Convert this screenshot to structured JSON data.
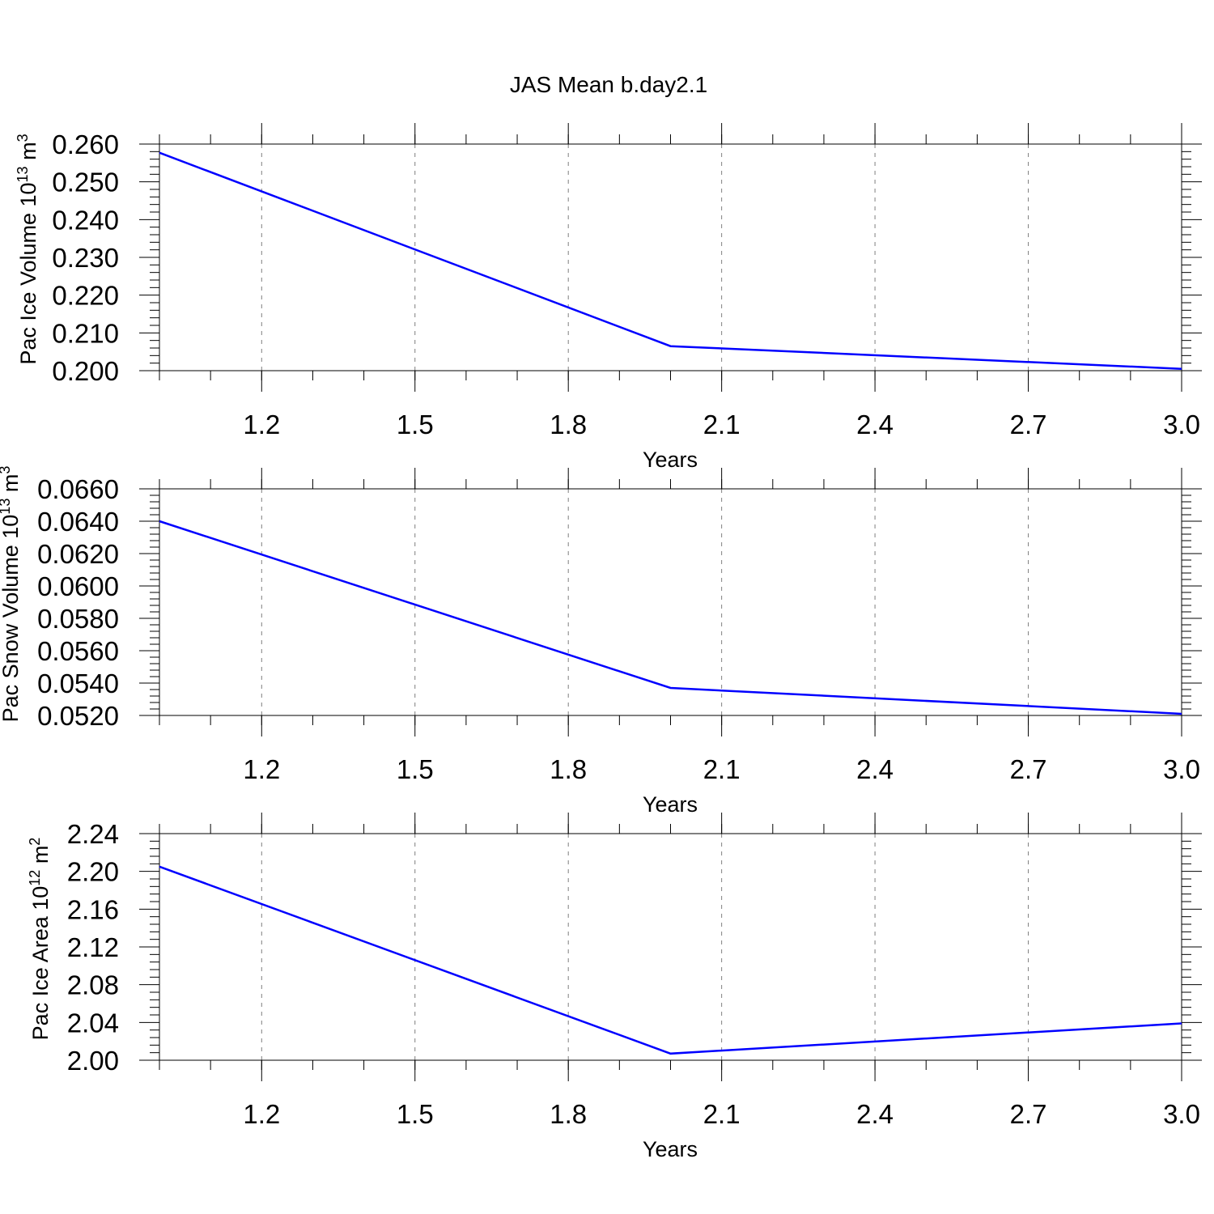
{
  "title": "JAS Mean b.day2.1",
  "colors": {
    "line": "#0000ff",
    "axis": "#000000",
    "grid": "#7f7f7f"
  },
  "chart_data": [
    {
      "type": "line",
      "title": "JAS Mean b.day2.1",
      "xlabel": "Years",
      "ylabel": "Pac Ice Volume 10",
      "ylabel_sup": "13",
      "ylabel_unit": "m",
      "ylabel_unit_sup": "3",
      "x": [
        1.0,
        2.0,
        3.0
      ],
      "series": [
        {
          "name": "Pac Ice Volume",
          "values": [
            0.2577,
            0.2065,
            0.2005
          ]
        }
      ],
      "xlim": [
        1.0,
        3.0
      ],
      "ylim": [
        0.2,
        0.26
      ],
      "xticks": [
        "1.2",
        "1.5",
        "1.8",
        "2.1",
        "2.4",
        "2.7",
        "3.0"
      ],
      "yticks": [
        "0.200",
        "0.210",
        "0.220",
        "0.230",
        "0.240",
        "0.250",
        "0.260"
      ],
      "grid": "x-dashed"
    },
    {
      "type": "line",
      "xlabel": "Years",
      "ylabel": "Pac Snow Volume 10",
      "ylabel_sup": "13",
      "ylabel_unit": "m",
      "ylabel_unit_sup": "3",
      "x": [
        1.0,
        2.0,
        3.0
      ],
      "series": [
        {
          "name": "Pac Snow Volume",
          "values": [
            0.064,
            0.0537,
            0.0521
          ]
        }
      ],
      "xlim": [
        1.0,
        3.0
      ],
      "ylim": [
        0.052,
        0.066
      ],
      "xticks": [
        "1.2",
        "1.5",
        "1.8",
        "2.1",
        "2.4",
        "2.7",
        "3.0"
      ],
      "yticks": [
        "0.0520",
        "0.0540",
        "0.0560",
        "0.0580",
        "0.0600",
        "0.0620",
        "0.0640",
        "0.0660"
      ],
      "grid": "x-dashed"
    },
    {
      "type": "line",
      "xlabel": "Years",
      "ylabel": "Pac Ice Area 10",
      "ylabel_sup": "12",
      "ylabel_unit": "m",
      "ylabel_unit_sup": "2",
      "x": [
        1.0,
        2.0,
        3.0
      ],
      "series": [
        {
          "name": "Pac Ice Area",
          "values": [
            2.205,
            2.007,
            2.039
          ]
        }
      ],
      "xlim": [
        1.0,
        3.0
      ],
      "ylim": [
        2.0,
        2.24
      ],
      "xticks": [
        "1.2",
        "1.5",
        "1.8",
        "2.1",
        "2.4",
        "2.7",
        "3.0"
      ],
      "yticks": [
        "2.00",
        "2.04",
        "2.08",
        "2.12",
        "2.16",
        "2.20",
        "2.24"
      ],
      "grid": "x-dashed"
    }
  ]
}
